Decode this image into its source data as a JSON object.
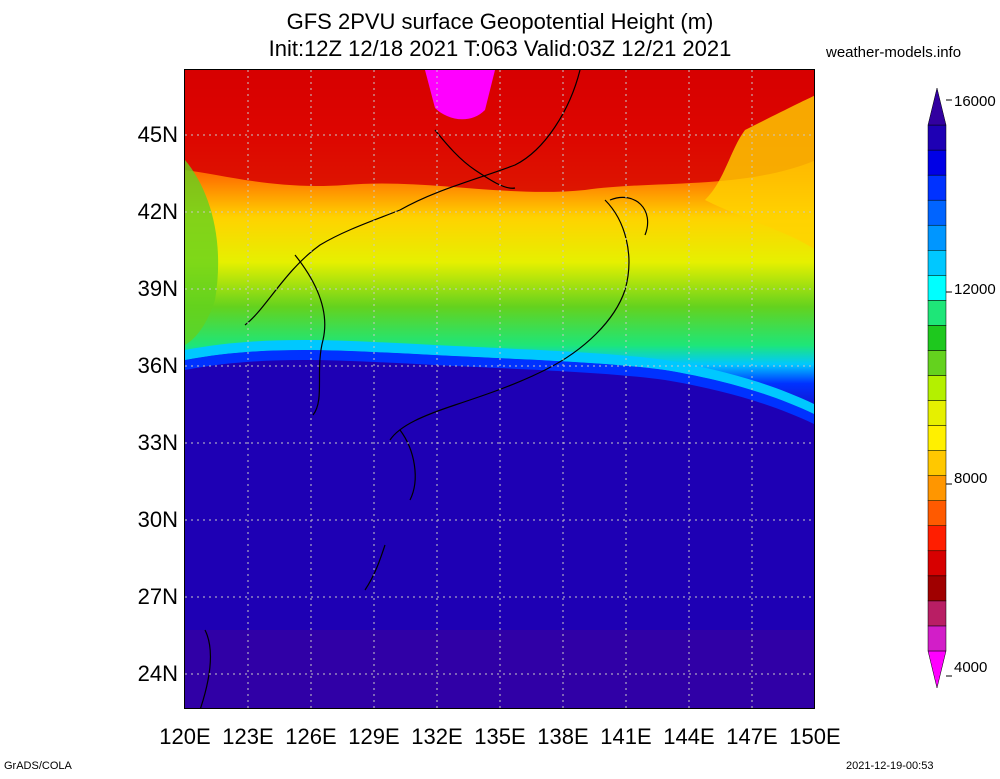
{
  "title": {
    "line1": "GFS 2PVU surface Geopotential Height (m)",
    "line2": "Init:12Z 12/18 2021 T:063 Valid:03Z 12/21 2021"
  },
  "site": "weather-models.info",
  "lat_labels": [
    "45N",
    "42N",
    "39N",
    "36N",
    "33N",
    "30N",
    "27N",
    "24N"
  ],
  "lon_labels": [
    "120E",
    "123E",
    "126E",
    "129E",
    "132E",
    "135E",
    "138E",
    "141E",
    "144E",
    "147E",
    "150E"
  ],
  "colorbar": {
    "labels": [
      "16000",
      "12000",
      "8000",
      "4000"
    ],
    "colors": [
      "#ff00ff",
      "#d21ec8",
      "#b91e64",
      "#a00000",
      "#d70000",
      "#ff1e00",
      "#ff5a00",
      "#ff9600",
      "#ffc800",
      "#fff000",
      "#e6f000",
      "#b4f000",
      "#64d21e",
      "#1ec81e",
      "#1ee678",
      "#00ffff",
      "#00c8ff",
      "#0096ff",
      "#0064ff",
      "#0032ff",
      "#0000e6",
      "#1e00b4",
      "#3200a0"
    ]
  },
  "footer": {
    "left": "GrADS/COLA",
    "right": "2021-12-19-00:53"
  }
}
